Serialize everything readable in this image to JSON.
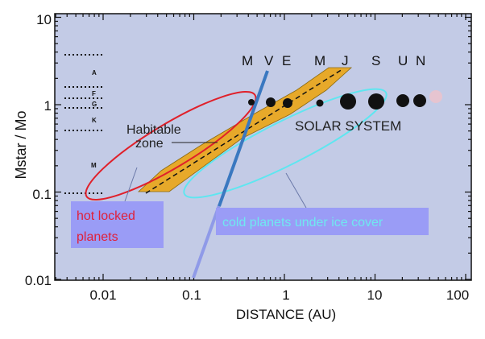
{
  "chart_data": {
    "type": "scatter",
    "xlabel": "DISTANCE (AU)",
    "ylabel": "Mstar / Mo",
    "x_scale": "log",
    "y_scale": "log",
    "xlim": [
      0.003,
      140
    ],
    "ylim": [
      0.01,
      10
    ],
    "x_ticks": [
      "0.01",
      "0.1",
      "1",
      "10",
      "100"
    ],
    "y_ticks": [
      "10",
      "1",
      "0.1",
      "0.01"
    ],
    "spectral_classes": [
      "A",
      "F",
      "G",
      "K",
      "M"
    ],
    "planet_labels": [
      "M",
      "V",
      "E",
      "M",
      "J",
      "S",
      "U",
      "N"
    ],
    "annotations": {
      "habitable_zone": [
        "Habitable",
        "zone"
      ],
      "solar_system": "SOLAR SYSTEM",
      "hot_locked": [
        "hot locked",
        "planets"
      ],
      "cold_planets": "cold planets under ice cover"
    },
    "colors": {
      "background": "#c3cbe6",
      "habitable_band": "#e7a92a",
      "hot_ellipse": "#e0202a",
      "cold_ellipse": "#5fe6f0",
      "tidal_lock_line": "#3a78c0",
      "label_box": "#9a9cf6",
      "hot_text": "#e0203a",
      "cold_text": "#6fe8f0"
    }
  }
}
